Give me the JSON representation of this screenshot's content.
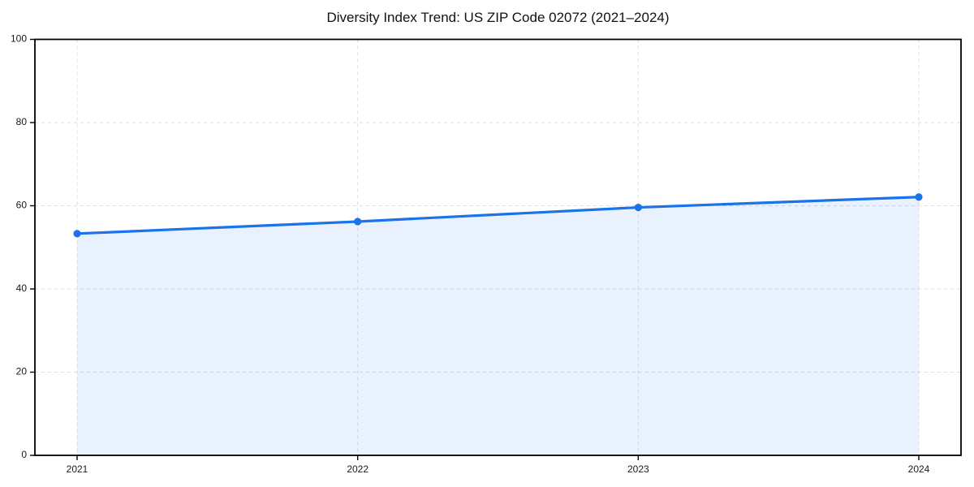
{
  "chart_data": {
    "type": "line",
    "title": "Diversity Index Trend: US ZIP Code 02072 (2021–2024)",
    "categories": [
      "2021",
      "2022",
      "2023",
      "2024"
    ],
    "series": [
      {
        "name": "Diversity Index",
        "values": [
          53.3,
          56.2,
          59.6,
          62.1
        ]
      }
    ],
    "xlabel": "",
    "ylabel": "",
    "ylim": [
      0,
      100
    ],
    "yticks": [
      0,
      20,
      40,
      60,
      80,
      100
    ],
    "grid": true,
    "grid_style": "dashed",
    "legend_position": "none",
    "line_color": "#1a73e8",
    "marker": "circle",
    "area_fill": true,
    "area_fill_color": "#1a73e8",
    "area_fill_opacity": 0.1,
    "grid_color": "#dcdcdc",
    "frame_color": "#000000",
    "background_color": "#ffffff"
  }
}
